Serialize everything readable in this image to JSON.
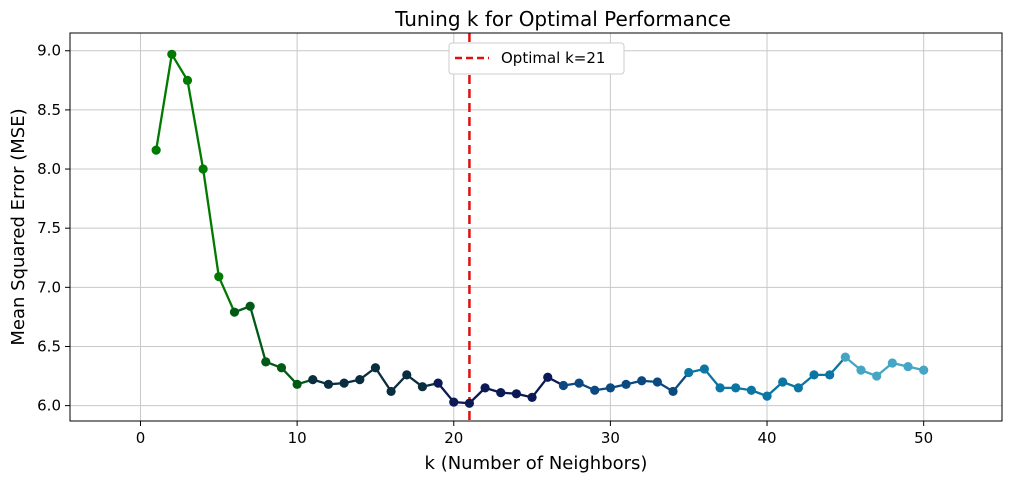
{
  "chart_data": {
    "type": "line",
    "title": "Tuning k for Optimal Performance",
    "xlabel": "k (Number of Neighbors)",
    "ylabel": "Mean Squared Error (MSE)",
    "xlim": [
      -4.5,
      55
    ],
    "ylim": [
      5.87,
      9.15
    ],
    "x_ticks": [
      0,
      10,
      20,
      30,
      40,
      50
    ],
    "y_ticks": [
      6.0,
      6.5,
      7.0,
      7.5,
      8.0,
      8.5,
      9.0
    ],
    "x_tick_labels": [
      "0",
      "10",
      "20",
      "30",
      "40",
      "50"
    ],
    "y_tick_labels": [
      "6.0",
      "6.5",
      "7.0",
      "7.5",
      "8.0",
      "8.5",
      "9.0"
    ],
    "grid": true,
    "legend_position": "top-center",
    "series": [
      {
        "x": [
          1,
          2,
          3,
          4,
          5,
          6,
          7,
          8,
          9,
          10,
          11,
          12,
          13,
          14,
          15,
          16,
          17,
          18,
          19,
          20,
          21,
          22,
          23,
          24,
          25,
          26,
          27,
          28,
          29,
          30,
          31,
          32,
          33,
          34,
          35,
          36,
          37,
          38,
          39,
          40,
          41,
          42,
          43,
          44,
          45,
          46,
          47,
          48,
          49,
          50
        ],
        "values": [
          8.16,
          8.97,
          8.75,
          8.0,
          7.09,
          6.79,
          6.84,
          6.37,
          6.32,
          6.18,
          6.22,
          6.18,
          6.19,
          6.22,
          6.32,
          6.12,
          6.26,
          6.16,
          6.19,
          6.03,
          6.02,
          6.15,
          6.11,
          6.1,
          6.07,
          6.24,
          6.17,
          6.19,
          6.13,
          6.15,
          6.18,
          6.21,
          6.2,
          6.12,
          6.28,
          6.31,
          6.15,
          6.15,
          6.13,
          6.08,
          6.2,
          6.15,
          6.26,
          6.26,
          6.41,
          6.3,
          6.25,
          6.36,
          6.33,
          6.3
        ],
        "colors": {
          "start": "#007a00",
          "early": "#005a15",
          "dark": "#0a2e40",
          "navy": "#0b1a55",
          "blue": "#0a4a80",
          "teal": "#0b75a3",
          "light": "#45a5c5"
        }
      }
    ],
    "reference_line": {
      "label": "Optimal k=21",
      "x": 21,
      "color": "#e01010",
      "style": "dashed"
    },
    "colors": {
      "grid": "#c8c8c8",
      "axes": "#000000",
      "legend_border": "#cccccc"
    }
  }
}
